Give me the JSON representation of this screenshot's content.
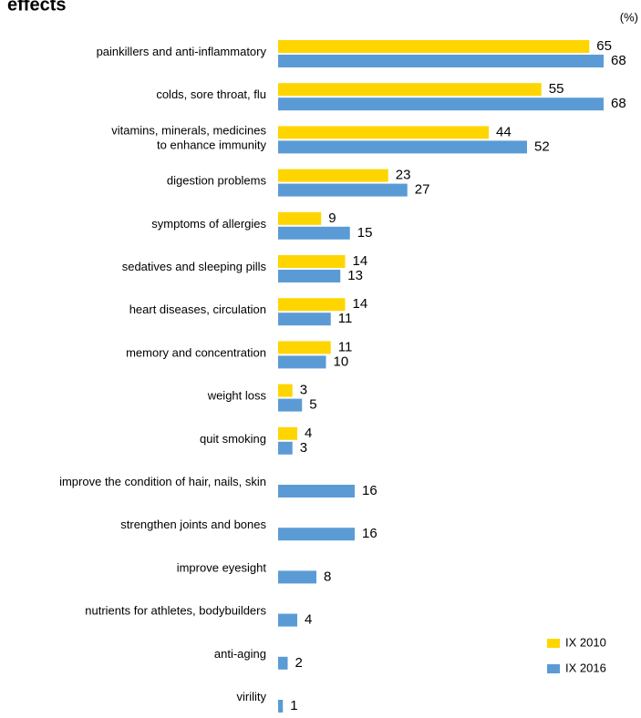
{
  "chart_data": {
    "type": "bar",
    "orientation": "horizontal",
    "title": "effects",
    "unit": "(%)",
    "categories": [
      "painkillers and anti-inflammatory",
      "colds, sore throat, flu",
      "vitamins, minerals, medicines\nto enhance immunity",
      "digestion problems",
      "symptoms of allergies",
      "sedatives and sleeping pills",
      "heart diseases, circulation",
      "memory and concentration",
      "weight loss",
      "quit smoking",
      "improve the condition of hair, nails, skin",
      "strengthen joints and bones",
      "improve eyesight",
      "nutrients for athletes, bodybuilders",
      "anti-aging",
      "virility"
    ],
    "series": [
      {
        "name": "IX 2010",
        "color": "#ffd500",
        "values": [
          65,
          55,
          44,
          23,
          9,
          14,
          14,
          11,
          3,
          4,
          null,
          null,
          null,
          null,
          null,
          null
        ]
      },
      {
        "name": "IX 2016",
        "color": "#5b9bd5",
        "values": [
          68,
          68,
          52,
          27,
          15,
          13,
          11,
          10,
          5,
          3,
          16,
          16,
          8,
          4,
          2,
          1
        ]
      }
    ],
    "legend": "lower right"
  }
}
